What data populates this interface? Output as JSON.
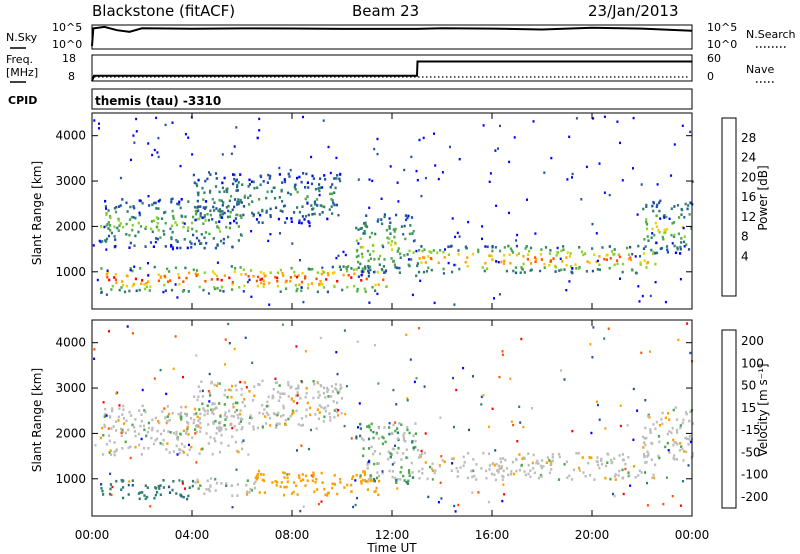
{
  "header": {
    "station": "Blackstone (fitACF)",
    "beam": "Beam 23",
    "date": "23/Jan/2013"
  },
  "noise_panel": {
    "left_label": "N.Sky",
    "left_ticks": [
      "10^5",
      "10^0"
    ],
    "right_label": "N.Search",
    "right_ticks": [
      "10^5",
      "10^0"
    ]
  },
  "freq_panel": {
    "left_label_1": "Freq.",
    "left_label_2": "[MHz]",
    "left_ticks": [
      "18",
      "8"
    ],
    "right_label": "Nave",
    "right_ticks": [
      "60",
      "0"
    ]
  },
  "cpid": {
    "label": "CPID",
    "value": "themis (tau) -3310"
  },
  "power_panel": {
    "ylabel": "Slant Range [km]",
    "yticks": [
      "4000",
      "3000",
      "2000",
      "1000"
    ],
    "colorbar_label": "Power [dB]",
    "colorbar_ticks": [
      "28",
      "24",
      "20",
      "16",
      "12",
      "8",
      "4"
    ],
    "colors": [
      "#0000ff",
      "#1e50a8",
      "#2e7d6e",
      "#4aa84a",
      "#8ad22a",
      "#f0d000",
      "#ffa000",
      "#ff5000",
      "#ff0000"
    ]
  },
  "velocity_panel": {
    "ylabel": "Slant Range [km]",
    "yticks": [
      "4000",
      "3000",
      "2000",
      "1000"
    ],
    "colorbar_label": "Velocity [m s⁻¹]",
    "colorbar_ticks": [
      "200",
      "100",
      "50",
      "15",
      "-15",
      "-50",
      "-100",
      "-200"
    ],
    "colors": [
      "#0000ff",
      "#1e50a8",
      "#2e7d6e",
      "#4aa84a",
      "#bdbdbd",
      "#ffa000",
      "#ff5000",
      "#ff0000"
    ]
  },
  "x_axis": {
    "label": "Time UT",
    "ticks": [
      "00:00",
      "04:00",
      "08:00",
      "12:00",
      "16:00",
      "20:00",
      "00:00"
    ]
  },
  "chart_data": [
    {
      "type": "line",
      "title": "N.Sky / N.Search",
      "x": [
        0,
        0.05,
        0.5,
        1,
        1.5,
        2,
        4,
        6,
        8,
        10,
        12,
        13,
        14,
        16,
        18,
        20,
        22,
        24
      ],
      "series": [
        {
          "name": "N.Sky",
          "values": [
            0.6,
            4.3,
            4.4,
            4.1,
            3.5,
            4.2,
            4.3,
            4.3,
            4.2,
            4.3,
            4.3,
            4.2,
            4.4,
            4.3,
            4.2,
            4.3,
            4.2,
            3.9
          ]
        }
      ],
      "ylim": [
        0,
        5
      ]
    },
    {
      "type": "line",
      "title": "Freq / Nave",
      "x": [
        0,
        0.08,
        13,
        13.02,
        24
      ],
      "series": [
        {
          "name": "Freq",
          "values": [
            8,
            10,
            10,
            15.5,
            15.5
          ]
        }
      ],
      "ylim": [
        8,
        18
      ]
    },
    {
      "type": "heatmap",
      "title": "Power [dB]",
      "xlabel": "Time UT",
      "ylabel": "Slant Range [km]",
      "xlim": [
        0,
        24
      ],
      "ylim": [
        180,
        4500
      ],
      "bands": [
        {
          "t0": 0.3,
          "t1": 11.8,
          "r0": 580,
          "r1": 1150,
          "peak": 28
        },
        {
          "t0": 0.3,
          "t1": 6.0,
          "r0": 1550,
          "r1": 2650,
          "peak": 14
        },
        {
          "t0": 4.0,
          "t1": 10.0,
          "r0": 2100,
          "r1": 3200,
          "peak": 10
        },
        {
          "t0": 10.5,
          "t1": 13.0,
          "r0": 900,
          "r1": 2300,
          "peak": 16
        },
        {
          "t0": 13.0,
          "t1": 22.5,
          "r0": 1000,
          "r1": 1600,
          "peak": 24
        },
        {
          "t0": 22.0,
          "t1": 24.0,
          "r0": 1400,
          "r1": 2600,
          "peak": 16
        }
      ]
    },
    {
      "type": "heatmap",
      "title": "Velocity [m s⁻¹]",
      "xlabel": "Time UT",
      "ylabel": "Slant Range [km]",
      "xlim": [
        0,
        24
      ],
      "ylim": [
        180,
        4500
      ],
      "bands": [
        {
          "t0": 0.3,
          "t1": 4.0,
          "r0": 580,
          "r1": 1000,
          "vel": 60
        },
        {
          "t0": 4.0,
          "t1": 6.5,
          "r0": 650,
          "r1": 1050,
          "vel": 0
        },
        {
          "t0": 6.5,
          "t1": 11.5,
          "r0": 650,
          "r1": 1200,
          "vel": -40
        },
        {
          "t0": 0.3,
          "t1": 6.0,
          "r0": 1550,
          "r1": 2650,
          "vel": 0
        },
        {
          "t0": 4.0,
          "t1": 10.0,
          "r0": 2100,
          "r1": 3200,
          "vel": 0
        },
        {
          "t0": 10.5,
          "t1": 13.0,
          "r0": 900,
          "r1": 2300,
          "vel": 20
        },
        {
          "t0": 13.0,
          "t1": 22.5,
          "r0": 1000,
          "r1": 1600,
          "vel": 0
        },
        {
          "t0": 22.0,
          "t1": 24.0,
          "r0": 1400,
          "r1": 2600,
          "vel": 0
        }
      ]
    }
  ]
}
